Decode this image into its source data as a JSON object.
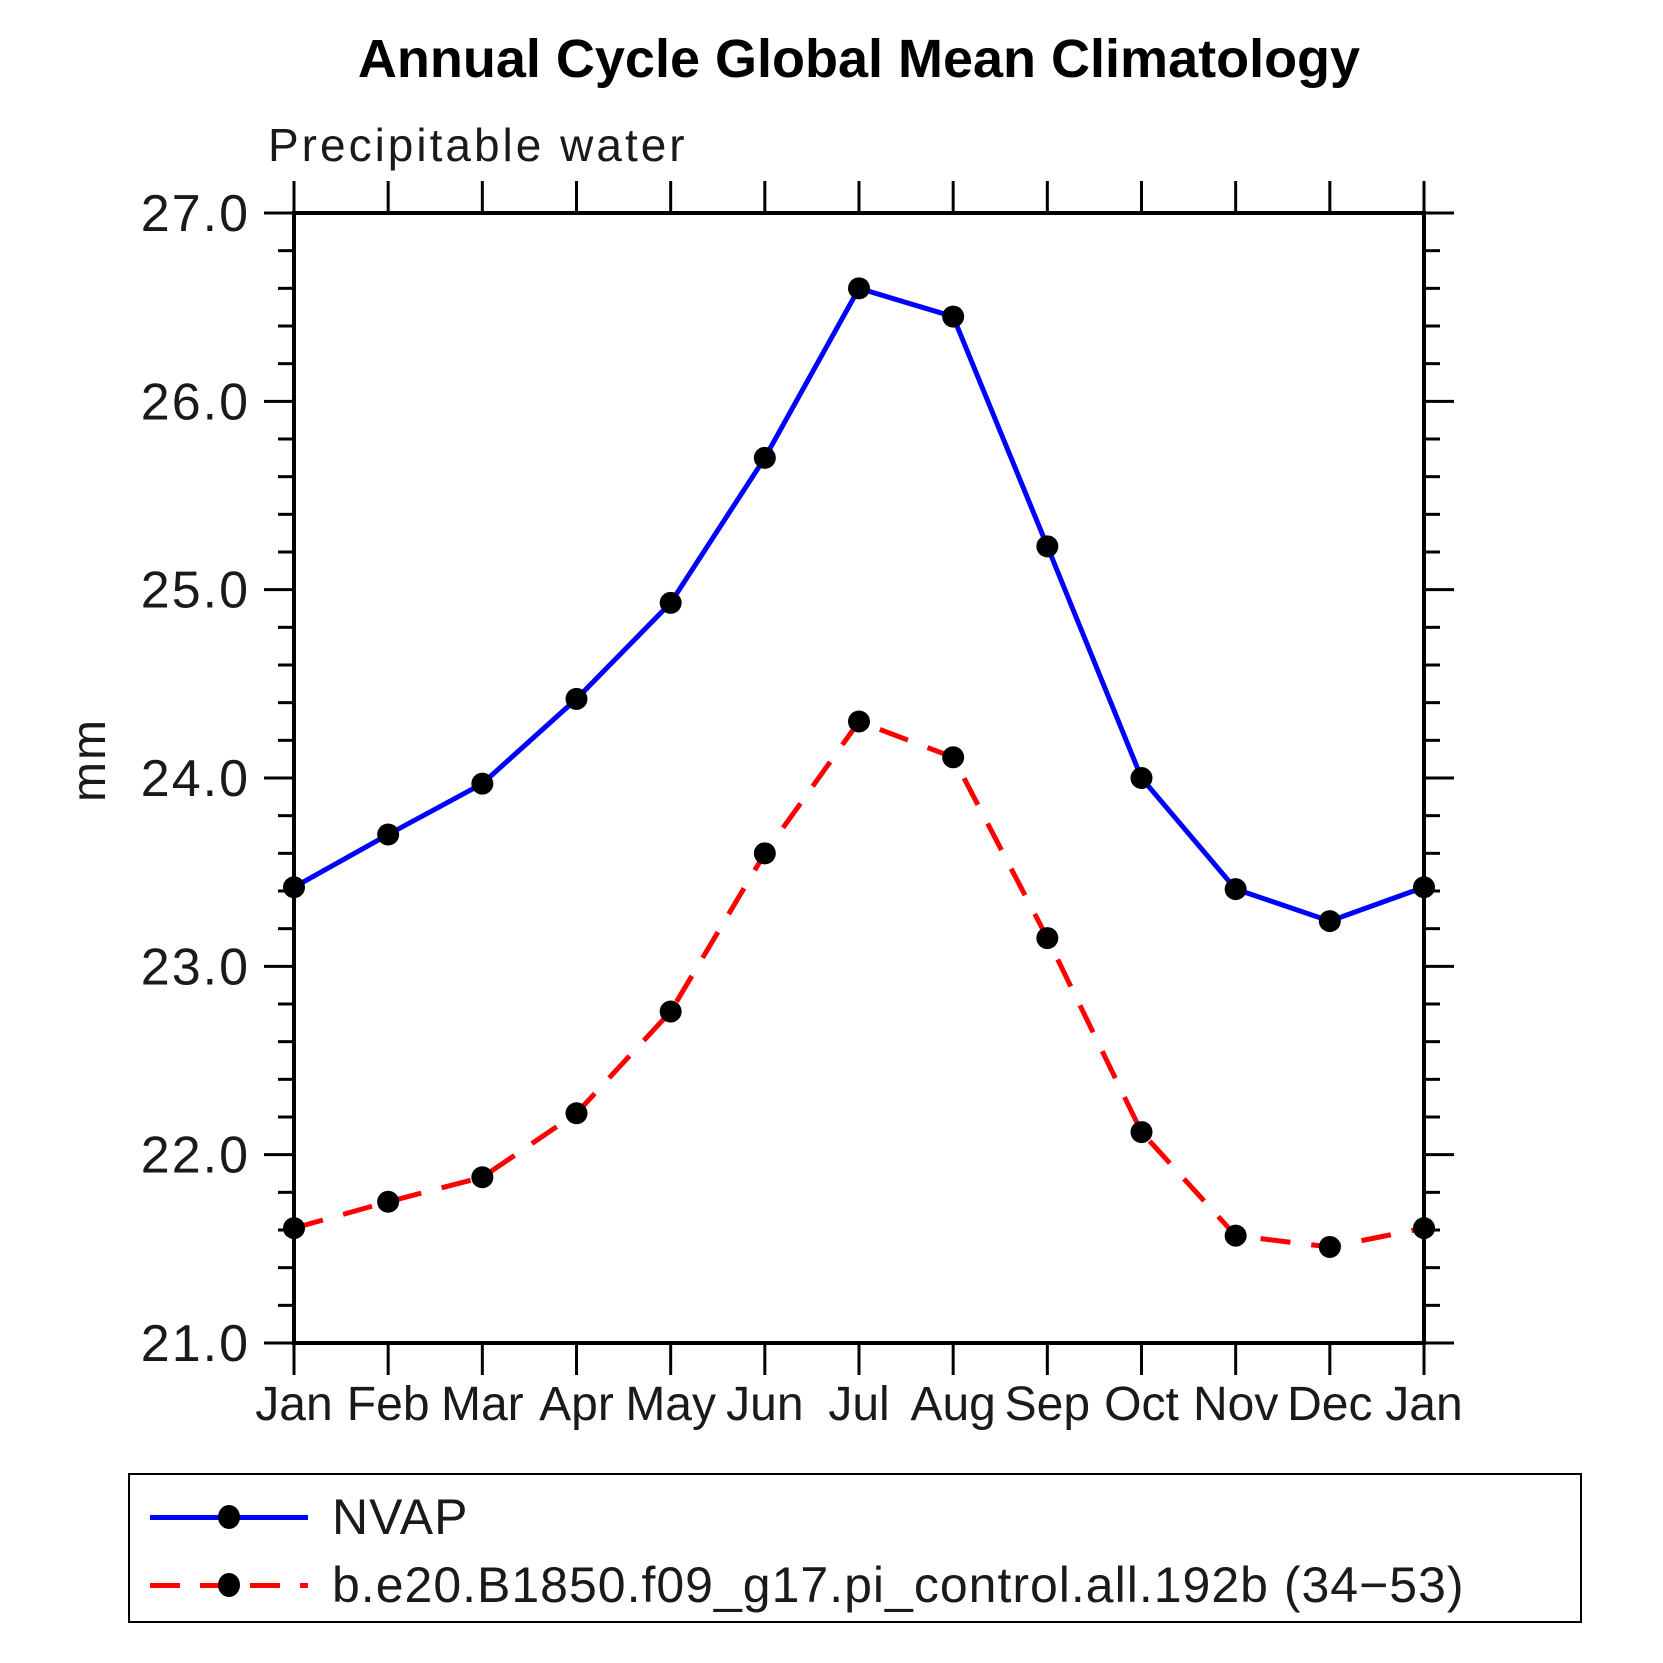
{
  "header": {
    "title": "Annual Cycle Global Mean Climatology",
    "subtitle": "Precipitable water"
  },
  "chart_data": {
    "type": "line",
    "title": "Annual Cycle Global Mean Climatology",
    "subtitle": "Precipitable water",
    "xlabel": "",
    "ylabel": "mm",
    "ylim": [
      21.0,
      27.0
    ],
    "ytick_step": 1.0,
    "ytick_minor_step": 0.2,
    "ytick_labels": [
      "21.0",
      "22.0",
      "23.0",
      "24.0",
      "25.0",
      "26.0",
      "27.0"
    ],
    "grid": false,
    "legend_position": "bottom",
    "categories": [
      "Jan",
      "Feb",
      "Mar",
      "Apr",
      "May",
      "Jun",
      "Jul",
      "Aug",
      "Sep",
      "Oct",
      "Nov",
      "Dec",
      "Jan"
    ],
    "series": [
      {
        "name": "NVAP",
        "color": "#0000ff",
        "line_style": "solid",
        "marker": "filled-circle",
        "marker_color": "#000000",
        "values": [
          23.42,
          23.7,
          23.97,
          24.42,
          24.93,
          25.7,
          26.6,
          26.45,
          25.23,
          24.0,
          23.41,
          23.24,
          23.42
        ]
      },
      {
        "name": "b.e20.B1850.f09_g17.pi_control.all.192b (34−53)",
        "color": "#ff0000",
        "line_style": "dashed",
        "marker": "filled-circle",
        "marker_color": "#000000",
        "values": [
          21.61,
          21.75,
          21.88,
          22.22,
          22.76,
          23.6,
          24.3,
          24.11,
          23.15,
          22.12,
          21.57,
          21.51,
          21.61
        ]
      }
    ]
  }
}
